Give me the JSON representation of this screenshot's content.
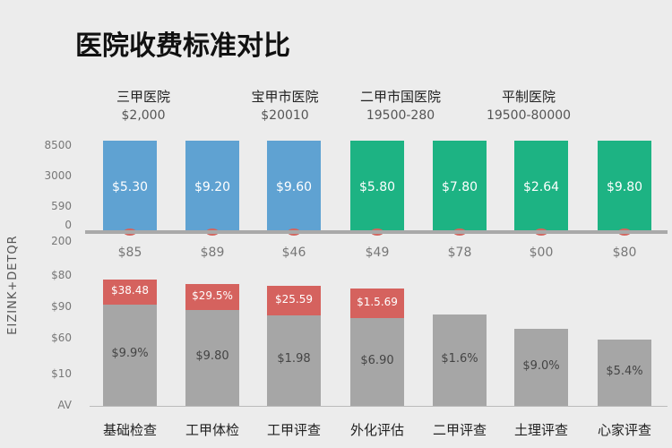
{
  "chart_data": {
    "type": "bar",
    "title": "医院收费标准对比",
    "ylabel": "EIZINK+DETQR",
    "groups": [
      {
        "label": "三甲医院",
        "sub": "$2,000"
      },
      {
        "label": "宝甲市医院",
        "sub": "$20010"
      },
      {
        "label": "二甲市国医院",
        "sub": "19500-280"
      },
      {
        "label": "平制医院",
        "sub": "19500-80000"
      }
    ],
    "top_panel": {
      "yticks": [
        "8500",
        "3000",
        "590",
        "0"
      ],
      "colors": [
        "#5fa2d2",
        "#5fa2d2",
        "#5fa2d2",
        "#1db383",
        "#1db383",
        "#1db383",
        "#1db383"
      ],
      "values_label": [
        "$5.30",
        "$9.20",
        "$9.60",
        "$5.80",
        "$7.80",
        "$2.64",
        "$9.80"
      ],
      "relative_value": [
        1,
        1,
        1,
        1,
        1,
        1,
        1
      ]
    },
    "mid_labels": [
      "$85",
      "$89",
      "$46",
      "$49",
      "$78",
      "$00",
      "$80"
    ],
    "bottom_panel": {
      "yticks": [
        "200",
        "$80",
        "$90",
        "$60",
        "$10",
        "AV"
      ],
      "categories": [
        "基础检查",
        "工甲体检",
        "工甲评查",
        "外化评估",
        "二甲评查",
        "土理评查",
        "心家评查"
      ],
      "base_values": [
        114,
        108,
        102,
        99,
        103,
        87,
        75
      ],
      "base_labels": [
        "$9.9%",
        "$9.80",
        "$1.98",
        "$6.90",
        "$1.6%",
        "$9.0%",
        "$5.4%"
      ],
      "extra_values": [
        28,
        29,
        33,
        33,
        0,
        0,
        0
      ],
      "extra_labels": [
        "$38.48",
        "$29.5%",
        "$25.59",
        "$1.5.69",
        "",
        "",
        ""
      ],
      "base_color": "#a6a6a6",
      "extra_color": "#d5625e"
    }
  }
}
